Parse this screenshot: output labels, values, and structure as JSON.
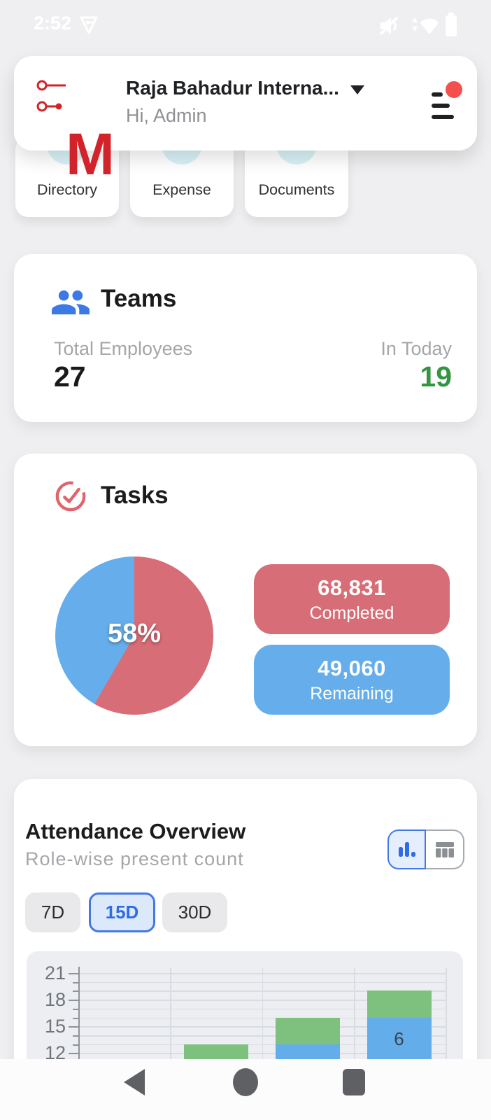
{
  "status_bar": {
    "time": "2:52",
    "icons": [
      "vpn-shield",
      "sound-muted",
      "network-updown-wifi",
      "battery"
    ]
  },
  "header": {
    "logo_letter": "M",
    "title": "Raja Bahadur Interna...",
    "subtitle": "Hi, Admin",
    "menu_has_notification": true
  },
  "quick_actions": [
    {
      "label": "Directory",
      "icon": "directory-icon"
    },
    {
      "label": "Expense",
      "icon": "expense-icon"
    },
    {
      "label": "Documents",
      "icon": "documents-icon"
    }
  ],
  "teams": {
    "title": "Teams",
    "total_label": "Total Employees",
    "total_value": "27",
    "in_today_label": "In Today",
    "in_today_value": "19"
  },
  "tasks": {
    "title": "Tasks",
    "completed": {
      "value": "68,831",
      "label": "Completed"
    },
    "remaining": {
      "value": "49,060",
      "label": "Remaining"
    },
    "chart_data": {
      "type": "pie",
      "center_label": "58%",
      "slices": [
        {
          "label": "Completed",
          "value": 68831,
          "color": "#D76D76"
        },
        {
          "label": "Remaining",
          "value": 49060,
          "color": "#65AEEB"
        }
      ]
    }
  },
  "attendance": {
    "title": "Attendance Overview",
    "subtitle": "Role-wise present count",
    "view_toggle": [
      "bar-chart",
      "table"
    ],
    "active_view": "bar-chart",
    "ranges": [
      {
        "label": "7D",
        "active": false
      },
      {
        "label": "15D",
        "active": true
      },
      {
        "label": "30D",
        "active": false
      }
    ],
    "chart_data": {
      "type": "bar",
      "stacked": true,
      "yticks": [
        21,
        18,
        15,
        12
      ],
      "grid": true,
      "colors": {
        "blue": "#63ADEA",
        "green": "#7EC17F"
      },
      "visible_bars": [
        {
          "green_top": 13,
          "blue_top": null
        },
        {
          "green_top": 16,
          "blue_top": 13
        },
        {
          "green_top": 19,
          "blue_top": 16,
          "blue_label": "6"
        }
      ],
      "clipped_bottom": true
    }
  },
  "nav_bar": {
    "icons": [
      "back",
      "home",
      "recents"
    ]
  },
  "colors": {
    "page_bg": "#EFEFF1",
    "accent_red": "#D2232A",
    "badge_red": "#F4504E",
    "pie_red": "#D76D76",
    "pie_blue": "#65AEEB",
    "bar_green": "#7EC17F",
    "bar_blue": "#63ADEA",
    "in_today_green": "#33953F",
    "teams_icon_blue": "#3C79E6",
    "tasks_icon_red": "#E2636C",
    "active_blue": "#2E6BE5",
    "cyan_icon": "#2BC3D4"
  }
}
